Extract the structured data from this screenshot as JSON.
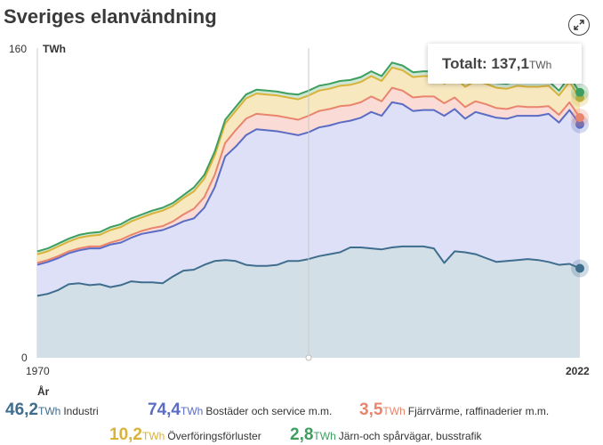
{
  "title": "Sveriges elanvändning",
  "tooltip": {
    "label": "Totalt:",
    "value": "137,1",
    "unit": "TWh"
  },
  "axis": {
    "y_max_label": "160",
    "y_zero_label": "0",
    "unit": "TWh",
    "x_start": "1970",
    "x_end": "2022",
    "x_title": "År"
  },
  "legend": [
    {
      "value": "46,2",
      "unit": "TWh",
      "name": "Industri",
      "color": "#3e6d8e"
    },
    {
      "value": "74,4",
      "unit": "TWh",
      "name": "Bostäder och service m.m.",
      "color": "#5a6cc4"
    },
    {
      "value": "3,5",
      "unit": "TWh",
      "name": "Fjärrvärme, raffinaderier m.m.",
      "color": "#e8856c"
    },
    {
      "value": "10,2",
      "unit": "TWh",
      "name": "Överföringsförluster",
      "color": "#d9b23a"
    },
    {
      "value": "2,8",
      "unit": "TWh",
      "name": "Järn-och spårvägar, busstrafik",
      "color": "#3e9e5f"
    }
  ],
  "chart_data": {
    "type": "area",
    "stacked": true,
    "title": "Sveriges elanvändning",
    "ylabel": "TWh",
    "xlabel": "År",
    "ylim": [
      0,
      160
    ],
    "xlim": [
      1970,
      2022
    ],
    "x": [
      1970,
      1971,
      1972,
      1973,
      1974,
      1975,
      1976,
      1977,
      1978,
      1979,
      1980,
      1981,
      1982,
      1983,
      1984,
      1985,
      1986,
      1987,
      1988,
      1989,
      1990,
      1991,
      1992,
      1993,
      1994,
      1995,
      1996,
      1997,
      1998,
      1999,
      2000,
      2001,
      2002,
      2003,
      2004,
      2005,
      2006,
      2007,
      2008,
      2009,
      2010,
      2011,
      2012,
      2013,
      2014,
      2015,
      2016,
      2017,
      2018,
      2019,
      2020,
      2021,
      2022
    ],
    "series": [
      {
        "name": "Industri",
        "color": "#3e6d8e",
        "values": [
          32.0,
          33.0,
          35.0,
          38.0,
          38.5,
          37.5,
          38.0,
          36.5,
          37.5,
          39.5,
          39.0,
          39.0,
          38.5,
          42.0,
          45.0,
          45.5,
          48.0,
          50.0,
          50.5,
          50.0,
          48.0,
          47.5,
          47.5,
          48.0,
          50.0,
          50.0,
          51.0,
          52.5,
          53.5,
          54.5,
          57.0,
          57.0,
          56.5,
          56.0,
          57.0,
          57.5,
          57.5,
          57.5,
          56.5,
          49.0,
          55.0,
          54.5,
          53.5,
          51.5,
          49.5,
          50.0,
          50.5,
          51.0,
          50.5,
          49.5,
          48.0,
          48.5,
          46.2
        ]
      },
      {
        "name": "Bostäder och service m.m.",
        "color": "#5a6cc4",
        "values": [
          16.0,
          16.5,
          16.5,
          16.0,
          17.0,
          19.0,
          18.5,
          22.0,
          22.0,
          22.5,
          25.0,
          26.0,
          27.5,
          26.0,
          25.5,
          26.5,
          29.5,
          38.0,
          53.5,
          59.0,
          67.0,
          70.5,
          70.0,
          69.0,
          66.0,
          65.0,
          65.5,
          66.5,
          66.5,
          67.0,
          65.5,
          67.0,
          70.5,
          69.0,
          75.0,
          73.5,
          70.0,
          70.5,
          71.5,
          76.0,
          73.5,
          69.0,
          73.5,
          74.0,
          74.5,
          73.5,
          74.5,
          74.0,
          74.5,
          76.5,
          73.5,
          79.5,
          74.4
        ]
      },
      {
        "name": "Fjärrvärme, raffinaderier m.m.",
        "color": "#e8856c",
        "values": [
          1.0,
          1.0,
          1.0,
          1.0,
          1.0,
          1.0,
          1.0,
          1.0,
          1.5,
          1.5,
          1.5,
          2.0,
          2.0,
          2.5,
          3.5,
          5.0,
          5.5,
          6.5,
          7.0,
          8.5,
          8.5,
          8.0,
          8.0,
          8.0,
          8.0,
          8.0,
          8.5,
          8.5,
          8.5,
          8.5,
          8.0,
          8.0,
          8.0,
          7.5,
          7.5,
          7.0,
          7.0,
          7.0,
          7.0,
          6.5,
          6.0,
          6.0,
          5.5,
          5.5,
          5.0,
          5.0,
          5.0,
          4.5,
          4.5,
          4.0,
          4.0,
          4.0,
          3.5
        ]
      },
      {
        "name": "Överföringsförluster",
        "color": "#d9b23a",
        "values": [
          4.5,
          4.5,
          5.0,
          5.0,
          5.5,
          5.5,
          6.0,
          6.5,
          6.5,
          7.0,
          7.0,
          7.5,
          8.0,
          8.0,
          8.5,
          9.0,
          9.5,
          10.0,
          10.0,
          10.0,
          10.5,
          10.5,
          10.5,
          10.5,
          10.5,
          10.5,
          10.5,
          10.5,
          10.5,
          10.5,
          10.5,
          10.5,
          10.5,
          10.5,
          10.5,
          10.5,
          10.5,
          10.5,
          10.5,
          10.0,
          10.5,
          10.5,
          10.5,
          10.5,
          10.5,
          10.5,
          10.5,
          10.5,
          10.5,
          10.5,
          10.0,
          10.5,
          10.2
        ]
      },
      {
        "name": "Järn-och spårvägar, busstrafik",
        "color": "#3e9e5f",
        "values": [
          1.5,
          1.5,
          1.5,
          1.5,
          1.5,
          1.5,
          1.5,
          1.5,
          1.5,
          1.5,
          1.5,
          1.5,
          1.5,
          1.5,
          1.5,
          2.0,
          2.0,
          2.0,
          2.0,
          2.0,
          2.0,
          2.0,
          2.0,
          2.0,
          2.0,
          2.5,
          2.5,
          2.5,
          2.5,
          2.5,
          2.5,
          2.5,
          2.5,
          2.5,
          2.5,
          2.5,
          2.5,
          2.5,
          2.5,
          2.5,
          2.5,
          2.5,
          2.5,
          2.5,
          2.5,
          2.5,
          2.5,
          2.5,
          2.5,
          2.5,
          2.5,
          2.8,
          2.8
        ]
      }
    ]
  }
}
